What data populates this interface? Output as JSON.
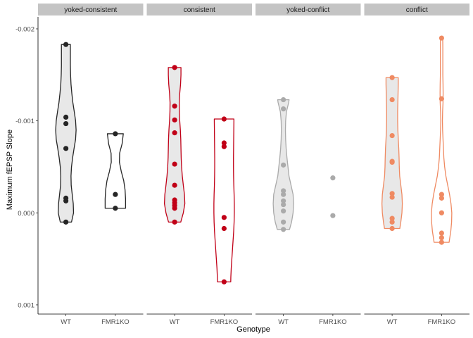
{
  "chart_data": {
    "type": "violin",
    "xlabel": "Genotype",
    "ylabel": "Maximum fEPSP Slope",
    "ylim": [
      -0.00213,
      0.0011
    ],
    "y_reversed": true,
    "y_ticks": [
      -0.002,
      -0.001,
      0.0,
      0.001
    ],
    "y_tick_labels": [
      "-0.002",
      "-0.001",
      "0.000",
      "0.001"
    ],
    "grid": false,
    "categories": [
      "WT",
      "FMR1KO"
    ],
    "panels": [
      {
        "label": "yoked-consistent",
        "color": "#252525",
        "groups": [
          {
            "genotype": "WT",
            "fill": "#e8e8e8",
            "points": [
              -0.00183,
              -0.00104,
              -0.00097,
              -0.0007,
              -0.00016,
              -0.00013,
              0.0001
            ],
            "profile": [
              [
                0.0001,
                0.55
              ],
              [
                0.0,
                0.75
              ],
              [
                -0.0001,
                0.72
              ],
              [
                -0.0002,
                0.62
              ],
              [
                -0.0003,
                0.52
              ],
              [
                -0.0004,
                0.5
              ],
              [
                -0.0005,
                0.55
              ],
              [
                -0.0006,
                0.66
              ],
              [
                -0.0007,
                0.8
              ],
              [
                -0.0008,
                0.95
              ],
              [
                -0.0009,
                1.0
              ],
              [
                -0.001,
                0.95
              ],
              [
                -0.0011,
                0.82
              ],
              [
                -0.0012,
                0.68
              ],
              [
                -0.0013,
                0.58
              ],
              [
                -0.0014,
                0.5
              ],
              [
                -0.0015,
                0.46
              ],
              [
                -0.0016,
                0.44
              ],
              [
                -0.0017,
                0.44
              ],
              [
                -0.0018,
                0.44
              ],
              [
                -0.00183,
                0.44
              ]
            ]
          },
          {
            "genotype": "FMR1KO",
            "fill": "#ffffff",
            "points": [
              -0.00086,
              -0.0002,
              -5e-05
            ],
            "profile": [
              [
                -5e-05,
                1.0
              ],
              [
                -0.00015,
                1.0
              ],
              [
                -0.00025,
                0.95
              ],
              [
                -0.00035,
                0.82
              ],
              [
                -0.00045,
                0.58
              ],
              [
                -0.00055,
                0.4
              ],
              [
                -0.00065,
                0.42
              ],
              [
                -0.00075,
                0.66
              ],
              [
                -0.00086,
                0.78
              ]
            ]
          }
        ]
      },
      {
        "label": "consistent",
        "color": "#c10017",
        "groups": [
          {
            "genotype": "WT",
            "fill": "#e8e8e8",
            "points": [
              -0.00158,
              -0.00116,
              -0.00101,
              -0.00087,
              -0.00053,
              -0.0003,
              -0.00014,
              -0.00011,
              -8e-05,
              -5e-05,
              0.0001
            ],
            "profile": [
              [
                0.0001,
                0.6
              ],
              [
                0.0,
                0.85
              ],
              [
                -0.0001,
                1.0
              ],
              [
                -0.0002,
                0.96
              ],
              [
                -0.0003,
                0.85
              ],
              [
                -0.0004,
                0.75
              ],
              [
                -0.0005,
                0.68
              ],
              [
                -0.0006,
                0.64
              ],
              [
                -0.0007,
                0.62
              ],
              [
                -0.0008,
                0.6
              ],
              [
                -0.0009,
                0.56
              ],
              [
                -0.001,
                0.5
              ],
              [
                -0.0011,
                0.46
              ],
              [
                -0.0012,
                0.45
              ],
              [
                -0.0013,
                0.5
              ],
              [
                -0.0014,
                0.58
              ],
              [
                -0.0015,
                0.62
              ],
              [
                -0.00158,
                0.62
              ]
            ]
          },
          {
            "genotype": "FMR1KO",
            "fill": "#ffffff",
            "points": [
              -0.00102,
              -0.00076,
              -0.00072,
              5e-05,
              0.00017,
              0.00075
            ],
            "profile": [
              [
                0.00075,
                0.65
              ],
              [
                0.0007,
                0.66
              ],
              [
                0.0006,
                0.7
              ],
              [
                0.0005,
                0.76
              ],
              [
                0.0004,
                0.82
              ],
              [
                0.0003,
                0.88
              ],
              [
                0.0002,
                0.94
              ],
              [
                0.0001,
                0.98
              ],
              [
                0.0,
                1.0
              ],
              [
                -0.0001,
                1.0
              ],
              [
                -0.0002,
                0.98
              ],
              [
                -0.0003,
                0.95
              ],
              [
                -0.0004,
                0.93
              ],
              [
                -0.0005,
                0.92
              ],
              [
                -0.0006,
                0.92
              ],
              [
                -0.0007,
                0.93
              ],
              [
                -0.0008,
                0.94
              ],
              [
                -0.0009,
                0.95
              ],
              [
                -0.001,
                0.96
              ],
              [
                -0.00102,
                0.96
              ]
            ]
          }
        ]
      },
      {
        "label": "yoked-conflict",
        "color": "#aaaaaa",
        "groups": [
          {
            "genotype": "WT",
            "fill": "#e8e8e8",
            "points": [
              -0.00123,
              -0.00113,
              -0.00052,
              -0.00024,
              -0.0002,
              -0.00013,
              -9e-05,
              -2e-05,
              0.0001,
              0.00018
            ],
            "profile": [
              [
                0.00018,
                0.6
              ],
              [
                0.0001,
                0.8
              ],
              [
                0.0,
                0.95
              ],
              [
                -0.0001,
                1.0
              ],
              [
                -0.0002,
                0.95
              ],
              [
                -0.0003,
                0.75
              ],
              [
                -0.0004,
                0.55
              ],
              [
                -0.0005,
                0.45
              ],
              [
                -0.0006,
                0.35
              ],
              [
                -0.0007,
                0.27
              ],
              [
                -0.0008,
                0.22
              ],
              [
                -0.0009,
                0.2
              ],
              [
                -0.001,
                0.22
              ],
              [
                -0.0011,
                0.3
              ],
              [
                -0.0012,
                0.52
              ],
              [
                -0.00123,
                0.56
              ]
            ]
          },
          {
            "genotype": "FMR1KO",
            "fill": "#ffffff",
            "points": [
              -0.00038,
              3e-05
            ],
            "profile": []
          }
        ]
      },
      {
        "label": "conflict",
        "color": "#ef8a62",
        "groups": [
          {
            "genotype": "WT",
            "fill": "#e8e8e8",
            "points": [
              -0.00147,
              -0.00123,
              -0.00084,
              -0.00056,
              -0.00055,
              -0.00021,
              -0.00017,
              6e-05,
              0.0001,
              0.00017
            ],
            "profile": [
              [
                0.00017,
                0.75
              ],
              [
                0.0001,
                0.85
              ],
              [
                0.0,
                0.96
              ],
              [
                -0.0001,
                1.0
              ],
              [
                -0.0002,
                0.96
              ],
              [
                -0.0003,
                0.85
              ],
              [
                -0.0004,
                0.74
              ],
              [
                -0.0005,
                0.7
              ],
              [
                -0.0006,
                0.68
              ],
              [
                -0.0007,
                0.65
              ],
              [
                -0.0008,
                0.6
              ],
              [
                -0.0009,
                0.56
              ],
              [
                -0.001,
                0.54
              ],
              [
                -0.0011,
                0.54
              ],
              [
                -0.0012,
                0.56
              ],
              [
                -0.0013,
                0.58
              ],
              [
                -0.0014,
                0.6
              ],
              [
                -0.00147,
                0.6
              ]
            ]
          },
          {
            "genotype": "FMR1KO",
            "fill": "#ffffff",
            "points": [
              -0.0019,
              -0.00124,
              -0.0002,
              -0.00016,
              0.0,
              0.00022,
              0.00027,
              0.00032
            ],
            "profile": [
              [
                0.00032,
                0.74
              ],
              [
                0.0003,
                0.76
              ],
              [
                0.0002,
                0.9
              ],
              [
                0.0001,
                0.98
              ],
              [
                0.0,
                1.0
              ],
              [
                -0.0001,
                0.92
              ],
              [
                -0.0002,
                0.78
              ],
              [
                -0.0003,
                0.6
              ],
              [
                -0.0004,
                0.42
              ],
              [
                -0.0005,
                0.3
              ],
              [
                -0.0006,
                0.22
              ],
              [
                -0.0007,
                0.18
              ],
              [
                -0.0008,
                0.14
              ],
              [
                -0.0009,
                0.1
              ],
              [
                -0.001,
                0.08
              ],
              [
                -0.0011,
                0.1
              ],
              [
                -0.0012,
                0.14
              ],
              [
                -0.0013,
                0.15
              ],
              [
                -0.0014,
                0.14
              ],
              [
                -0.0015,
                0.12
              ],
              [
                -0.0016,
                0.12
              ],
              [
                -0.0017,
                0.12
              ],
              [
                -0.0018,
                0.12
              ],
              [
                -0.0019,
                0.11
              ]
            ]
          }
        ]
      }
    ]
  }
}
